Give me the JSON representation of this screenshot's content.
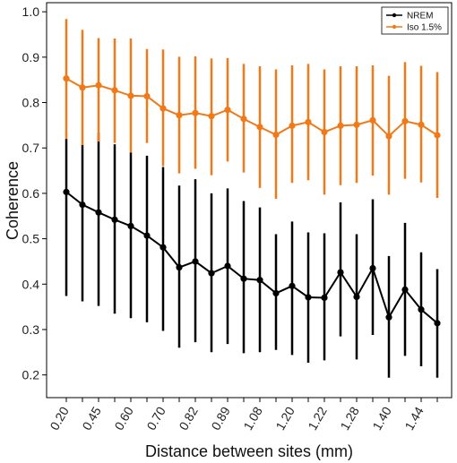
{
  "chart_data": {
    "type": "line",
    "xlabel": "Distance between sites (mm)",
    "ylabel": "Coherence",
    "ylim": [
      0.15,
      1.02
    ],
    "yticks": [
      "0.2",
      "0.3",
      "0.4",
      "0.5",
      "0.6",
      "0.7",
      "0.8",
      "0.9",
      "1.0"
    ],
    "ytick_values": [
      0.2,
      0.3,
      0.4,
      0.5,
      0.6,
      0.7,
      0.8,
      0.9,
      1.0
    ],
    "xticks": [
      "0.20",
      "0.45",
      "0.60",
      "0.70",
      "0.82",
      "0.89",
      "1.08",
      "1.20",
      "1.22",
      "1.28",
      "1.40",
      "1.44"
    ],
    "xtick_positions": [
      1,
      3,
      5,
      7,
      9,
      11,
      13,
      15,
      17,
      19,
      21,
      23
    ],
    "n_points": 24,
    "legend_position": "top-right",
    "error_bars": true,
    "series": [
      {
        "name": "NREM",
        "color": "#000000",
        "values": [
          0.603,
          0.575,
          0.558,
          0.542,
          0.528,
          0.507,
          0.481,
          0.437,
          0.45,
          0.424,
          0.44,
          0.412,
          0.409,
          0.38,
          0.396,
          0.371,
          0.37,
          0.426,
          0.372,
          0.435,
          0.327,
          0.388,
          0.344,
          0.314
        ],
        "upper": [
          0.72,
          0.707,
          0.734,
          0.708,
          0.69,
          0.683,
          0.658,
          0.617,
          0.631,
          0.6,
          0.611,
          0.583,
          0.569,
          0.51,
          0.538,
          0.514,
          0.512,
          0.58,
          0.51,
          0.587,
          0.462,
          0.535,
          0.47,
          0.433
        ],
        "lower": [
          0.374,
          0.362,
          0.352,
          0.335,
          0.325,
          0.316,
          0.297,
          0.26,
          0.272,
          0.25,
          0.268,
          0.248,
          0.25,
          0.255,
          0.244,
          0.227,
          0.232,
          0.285,
          0.234,
          0.288,
          0.194,
          0.242,
          0.219,
          0.194
        ]
      },
      {
        "name": "Iso 1.5%",
        "color": "#f07a1a",
        "values": [
          0.853,
          0.833,
          0.838,
          0.827,
          0.815,
          0.814,
          0.787,
          0.772,
          0.777,
          0.77,
          0.784,
          0.764,
          0.746,
          0.729,
          0.749,
          0.757,
          0.735,
          0.749,
          0.751,
          0.761,
          0.726,
          0.759,
          0.751,
          0.728
        ],
        "upper": [
          0.984,
          0.96,
          0.942,
          0.941,
          0.941,
          0.918,
          0.917,
          0.901,
          0.902,
          0.897,
          0.898,
          0.885,
          0.88,
          0.873,
          0.882,
          0.885,
          0.873,
          0.88,
          0.88,
          0.882,
          0.859,
          0.889,
          0.881,
          0.867
        ],
        "lower": [
          0.72,
          0.706,
          0.714,
          0.711,
          0.69,
          0.711,
          0.66,
          0.644,
          0.654,
          0.64,
          0.67,
          0.646,
          0.612,
          0.588,
          0.623,
          0.629,
          0.597,
          0.618,
          0.623,
          0.639,
          0.597,
          0.632,
          0.624,
          0.59
        ]
      }
    ]
  }
}
